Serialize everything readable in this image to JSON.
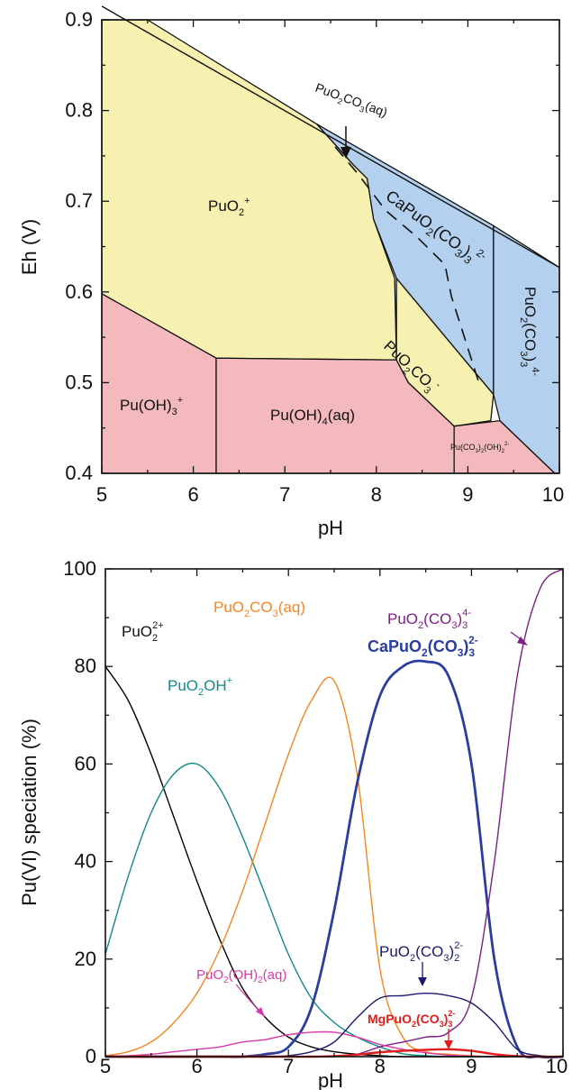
{
  "colors": {
    "acidic_hydrolysis_region": "#f4b9bd",
    "plutonyl_region": "#f6f1b0",
    "carbonate_region": "#b3d0ee",
    "PuO2_2plus": "#000000",
    "PuO2OH_plus": "#138a8a",
    "PuO2CO3_aq": "#f7861e",
    "CaPuO2CO3_3": "#2b3ea0",
    "PuO2CO3_3": "#7d1f86",
    "PuO2OH2_aq": "#d63ba8",
    "PuO2CO3_2": "#1a1a6e",
    "MgPuO2CO3_3": "#e01c1c"
  },
  "top_chart": {
    "xlabel": "pH",
    "ylabel": "Eh (V)",
    "x_ticks": [
      "5",
      "6",
      "7",
      "8",
      "9",
      "10"
    ],
    "y_ticks": [
      "0.4",
      "0.5",
      "0.6",
      "0.7",
      "0.8",
      "0.9"
    ],
    "region_labels": {
      "puo2": "PuO",
      "puo2_sup": "+",
      "puoh3": "Pu(OH)",
      "puoh3_sub": "3",
      "puoh3_sup": "+",
      "puoh4": "Pu(OH)",
      "puoh4_sub": "4",
      "puoh4_tail": "(aq)",
      "puo2co3m_a": "PuO",
      "puo2co3m_b": "CO",
      "puo2co3m_sup": "-",
      "capuo2_a": "CaPuO",
      "capuo2_b": "(CO",
      "capuo2_c": ")",
      "capuo2_sup": "2-",
      "puo2co33_a": "PuO",
      "puo2co33_b": "(CO",
      "puo2co33_c": ")",
      "puo2co33_sup": "4-",
      "pucoh_a": "Pu(CO",
      "pucoh_b": ")",
      "pucoh_c": "(OH)",
      "pucoh_sup": "2-",
      "puo2co3aq_a": "PuO",
      "puo2co3aq_b": "CO",
      "puo2co3aq_c": "(aq)",
      "sub2": "2",
      "sub3": "3"
    }
  },
  "bottom_chart": {
    "xlabel": "pH",
    "ylabel": "Pu(VI) speciation (%)",
    "x_ticks": [
      "5",
      "6",
      "7",
      "8",
      "9",
      "10"
    ],
    "y_ticks": [
      "0",
      "20",
      "40",
      "60",
      "80",
      "100"
    ],
    "labels": {
      "puo2_2p_a": "PuO",
      "puo2_2p_sub": "2",
      "puo2_2p_sup": "2+",
      "puo2oh_a": "PuO",
      "puo2oh_sub": "2",
      "puo2oh_b": "OH",
      "puo2oh_sup": "+",
      "puo2co3aq_a": "PuO",
      "puo2co3aq_b": "CO",
      "puo2co3aq_c": "(aq)",
      "capuo2_a": "CaPuO",
      "capuo2_b": "(CO",
      "capuo2_c": ")",
      "capuo2_sup": "2-",
      "puo2co33_a": "PuO",
      "puo2co33_b": "(CO",
      "puo2co33_c": ")",
      "puo2co33_sup": "4-",
      "puo2oh2_a": "PuO",
      "puo2oh2_b": "(OH)",
      "puo2oh2_c": "(aq)",
      "puo2co32_a": "PuO",
      "puo2co32_b": "(CO",
      "puo2co32_c": ")",
      "puo2co32_sup": "2-",
      "mgpuo2_a": "MgPuO",
      "mgpuo2_b": "(CO",
      "mgpuo2_c": ")",
      "mgpuo2_sup": "2-",
      "sub2": "2",
      "sub3": "3"
    }
  },
  "chart_data": [
    {
      "type": "area",
      "title": "",
      "xlabel": "pH",
      "ylabel": "Eh (V)",
      "xlim": [
        5,
        10
      ],
      "ylim": [
        0.4,
        0.9
      ],
      "grid": false,
      "upper_boundary": {
        "x": [
          5.0,
          10.0
        ],
        "y": [
          0.915,
          0.627
        ]
      },
      "regions": [
        {
          "name": "PuO2+",
          "polygon": [
            [
              5.0,
              0.9
            ],
            [
              5.5,
              0.9
            ],
            [
              7.35,
              0.785
            ],
            [
              7.75,
              0.74
            ],
            [
              7.9,
              0.725
            ],
            [
              7.97,
              0.68
            ],
            [
              8.2,
              0.615
            ],
            [
              8.22,
              0.525
            ],
            [
              6.25,
              0.527
            ],
            [
              5.0,
              0.598
            ]
          ]
        },
        {
          "name": "Pu(OH)3+",
          "polygon": [
            [
              5.0,
              0.598
            ],
            [
              6.25,
              0.527
            ],
            [
              6.25,
              0.4
            ],
            [
              5.0,
              0.4
            ]
          ]
        },
        {
          "name": "Pu(OH)4(aq)",
          "polygon": [
            [
              6.25,
              0.527
            ],
            [
              8.22,
              0.525
            ],
            [
              8.35,
              0.5
            ],
            [
              8.85,
              0.452
            ],
            [
              8.85,
              0.4
            ],
            [
              6.25,
              0.4
            ]
          ]
        },
        {
          "name": "PuO2CO3-",
          "polygon": [
            [
              8.22,
              0.615
            ],
            [
              8.22,
              0.525
            ],
            [
              8.35,
              0.5
            ],
            [
              8.85,
              0.452
            ],
            [
              9.25,
              0.458
            ],
            [
              9.28,
              0.487
            ]
          ]
        },
        {
          "name": "Pu(CO3)2(OH)2 2-",
          "polygon": [
            [
              8.85,
              0.452
            ],
            [
              9.35,
              0.458
            ],
            [
              9.95,
              0.4
            ],
            [
              8.85,
              0.4
            ]
          ]
        },
        {
          "name": "CaPuO2(CO3)3 2-",
          "polygon": [
            [
              7.35,
              0.785
            ],
            [
              9.28,
              0.673
            ],
            [
              9.28,
              0.487
            ],
            [
              8.22,
              0.615
            ],
            [
              7.97,
              0.68
            ],
            [
              7.9,
              0.725
            ],
            [
              7.75,
              0.74
            ]
          ]
        },
        {
          "name": "PuO2(CO3)3 4-",
          "polygon": [
            [
              9.28,
              0.673
            ],
            [
              10.0,
              0.627
            ],
            [
              10.0,
              0.4
            ],
            [
              9.95,
              0.4
            ],
            [
              9.35,
              0.458
            ],
            [
              9.28,
              0.487
            ]
          ]
        }
      ],
      "dashed_boundary": {
        "x": [
          7.55,
          7.8,
          8.1,
          8.45,
          8.75,
          8.82,
          9.12
        ],
        "y": [
          0.76,
          0.73,
          0.69,
          0.66,
          0.63,
          0.595,
          0.5
        ]
      },
      "annotation": {
        "text": "PuO2CO3(aq)",
        "arrow_to": [
          7.7,
          0.745
        ]
      }
    },
    {
      "type": "line",
      "title": "",
      "xlabel": "pH",
      "ylabel": "Pu(VI) speciation (%)",
      "xlim": [
        5,
        10
      ],
      "ylim": [
        0,
        100
      ],
      "grid": false,
      "x": [
        5.0,
        5.25,
        5.5,
        5.75,
        6.0,
        6.25,
        6.5,
        6.75,
        7.0,
        7.25,
        7.5,
        7.75,
        8.0,
        8.25,
        8.5,
        8.75,
        9.0,
        9.25,
        9.5,
        9.75,
        10.0
      ],
      "series": [
        {
          "name": "PuO2 2+",
          "values": [
            80,
            73,
            62,
            49,
            36,
            24,
            14,
            8,
            4,
            2,
            1,
            0.5,
            0.2,
            0,
            0,
            0,
            0,
            0,
            0,
            0,
            0
          ]
        },
        {
          "name": "PuO2OH+",
          "values": [
            21,
            37,
            50,
            58,
            60,
            55,
            45,
            33,
            21,
            12,
            7,
            4,
            2,
            0.6,
            0.2,
            0,
            0,
            0,
            0,
            0,
            0
          ]
        },
        {
          "name": "PuO2CO3(aq)",
          "values": [
            0.2,
            1,
            3,
            7,
            13,
            22,
            34,
            48,
            62,
            73,
            77,
            58,
            18,
            4,
            1,
            0.5,
            0.2,
            0,
            0,
            0,
            0
          ]
        },
        {
          "name": "CaPuO2(CO3)3 2-",
          "values": [
            0,
            0,
            0,
            0,
            0,
            0,
            0,
            0.5,
            2,
            10,
            30,
            56,
            74,
            80,
            81,
            78,
            60,
            20,
            2,
            0,
            0
          ]
        },
        {
          "name": "PuO2(CO3)3 4-",
          "values": [
            0,
            0,
            0,
            0,
            0,
            0,
            0,
            0,
            0,
            0,
            0,
            0.5,
            2,
            3,
            4,
            5,
            12,
            40,
            78,
            96,
            100
          ]
        },
        {
          "name": "PuO2(OH)2(aq)",
          "values": [
            0,
            0.2,
            0.5,
            1,
            1.5,
            2,
            3,
            3.5,
            4.5,
            5,
            5,
            4,
            2.5,
            1.5,
            0.8,
            0.3,
            0.1,
            0,
            0,
            0,
            0
          ]
        },
        {
          "name": "PuO2(CO3)2 2-",
          "values": [
            0,
            0,
            0,
            0,
            0,
            0,
            0,
            0,
            0.2,
            1,
            3,
            8,
            12,
            12.5,
            13,
            12.5,
            11,
            7,
            1.5,
            0.2,
            0
          ]
        },
        {
          "name": "MgPuO2(CO3)3 2-",
          "values": [
            0,
            0,
            0,
            0,
            0,
            0,
            0,
            0,
            0,
            0,
            0.1,
            0.4,
            0.9,
            1.2,
            1.4,
            1.5,
            1.2,
            0.5,
            0.1,
            0,
            0
          ]
        }
      ]
    }
  ]
}
